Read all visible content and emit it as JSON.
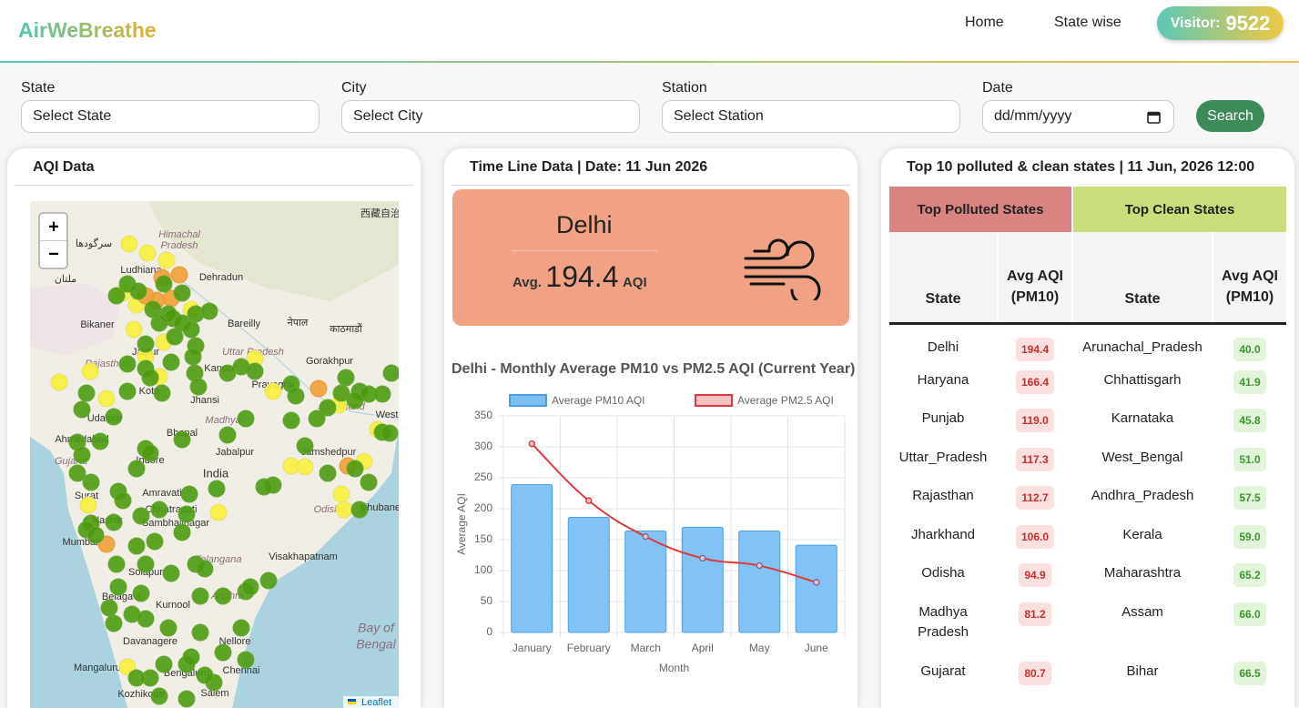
{
  "header": {
    "logo": "AirWeBreathe",
    "nav": [
      "Home",
      "State wise"
    ],
    "visitor_label": "Visitor:",
    "visitor_count": 9522
  },
  "filters": {
    "labels": [
      "State",
      "City",
      "Station",
      "Date"
    ],
    "placeholders": [
      "Select State",
      "Select City",
      "Select Station",
      "dd/mm/yyyy"
    ],
    "button": "Search"
  },
  "map_panel": {
    "title": "AQI Data",
    "zoom_in": "+",
    "zoom_out": "−",
    "attribution": "Leaflet",
    "labels": [
      "Himachal",
      "Pradesh",
      "Dehradun",
      "Bareilly",
      "नेपाल",
      "काठमाडौं",
      "Uttar Pradesh",
      "Gorakhpur",
      "Bikaner",
      "Jaipur",
      "Rajasthan",
      "Kanpur",
      "Kota",
      "Prayagraj",
      "Jhansi",
      "Udaipur",
      "Bhopal",
      "Madhya",
      "Jharkhand",
      "Ahmedabad",
      "Jamshedpur",
      "Jabalpur",
      "Gujarat",
      "Indore",
      "India",
      "Surat",
      "Amravati",
      "Chhatrapati",
      "Sambhajinagar",
      "Odisha",
      "Bhubane",
      "Nashik",
      "Mumbai",
      "Visakhapatnam",
      "Telangana",
      "Solapur",
      "Belagavi",
      "Kurnool",
      "Andhra",
      "Bay of",
      "Bengal",
      "Davanagere",
      "Nellore",
      "Mangaluru",
      "Bengaluru",
      "Chennai",
      "Salem",
      "Kozhikode",
      "Ludhiana",
      "West",
      "سرگودھا",
      "ملتان",
      "西藏自治"
    ]
  },
  "timeline": {
    "title": "Time Line Data | Date: 11 Jun 2026",
    "city": "Delhi",
    "avg_label": "Avg.",
    "avg_value": 194.4,
    "unit": "AQI"
  },
  "chart_data": {
    "type": "bar",
    "title": "Delhi - Monthly Average PM10 vs PM2.5 AQI (Current Year)",
    "x_label": "Month",
    "y_label": "Average AQI",
    "categories": [
      "January",
      "February",
      "March",
      "April",
      "May",
      "June"
    ],
    "series": [
      {
        "name": "Average PM10 AQI",
        "type": "bar",
        "color": "#7cbff3",
        "values": [
          239,
          186,
          164,
          170,
          164,
          141
        ]
      },
      {
        "name": "Average PM2.5 AQI",
        "type": "line",
        "color": "#e0393b",
        "values": [
          305,
          213,
          155,
          120,
          108,
          81
        ]
      }
    ],
    "ylim": [
      0,
      350
    ],
    "yticks": [
      0,
      50,
      100,
      150,
      200,
      250,
      300,
      350
    ],
    "grid": true,
    "legend": "top"
  },
  "table": {
    "title": "Top 10 polluted & clean states | 11 Jun, 2026 12:00",
    "groups": [
      "Top Polluted States",
      "Top Clean States"
    ],
    "columns": [
      "State",
      "Avg AQI (PM10)",
      "State",
      "Avg AQI (PM10)"
    ],
    "rows": [
      [
        "Delhi",
        "194.4",
        "Arunachal_Pradesh",
        "40.0"
      ],
      [
        "Haryana",
        "166.4",
        "Chhattisgarh",
        "41.9"
      ],
      [
        "Punjab",
        "119.0",
        "Karnataka",
        "45.8"
      ],
      [
        "Uttar_Pradesh",
        "117.3",
        "West_Bengal",
        "51.0"
      ],
      [
        "Rajasthan",
        "112.7",
        "Andhra_Pradesh",
        "57.5"
      ],
      [
        "Jharkhand",
        "106.0",
        "Kerala",
        "59.0"
      ],
      [
        "Odisha",
        "94.9",
        "Maharashtra",
        "65.2"
      ],
      [
        "Madhya Pradesh",
        "81.2",
        "Assam",
        "66.0"
      ],
      [
        "Gujarat",
        "80.7",
        "Bihar",
        "66.5"
      ]
    ]
  }
}
